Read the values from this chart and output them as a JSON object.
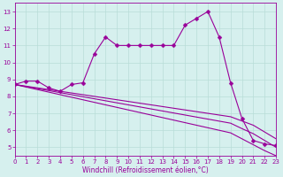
{
  "xlabel": "Windchill (Refroidissement éolien,°C)",
  "background_color": "#d6f0ee",
  "grid_color": "#b8ddd8",
  "line_color": "#990099",
  "x_hours": [
    0,
    1,
    2,
    3,
    4,
    5,
    6,
    7,
    8,
    9,
    10,
    11,
    12,
    13,
    14,
    15,
    16,
    17,
    18,
    19,
    20,
    21,
    22,
    23
  ],
  "temp_line": [
    8.7,
    8.9,
    8.9,
    8.5,
    8.3,
    8.7,
    8.8,
    10.5,
    11.5,
    11.0,
    11.0,
    11.0,
    11.0,
    11.0,
    11.0,
    12.2,
    12.6,
    13.0,
    11.5,
    8.8,
    6.7,
    5.4,
    5.2,
    5.1
  ],
  "reg1": [
    8.7,
    8.6,
    8.5,
    8.4,
    8.3,
    8.2,
    8.1,
    8.0,
    7.9,
    7.8,
    7.7,
    7.6,
    7.5,
    7.4,
    7.3,
    7.2,
    7.1,
    7.0,
    6.9,
    6.8,
    6.55,
    6.3,
    5.9,
    5.5
  ],
  "reg2": [
    8.7,
    8.58,
    8.46,
    8.34,
    8.22,
    8.1,
    7.98,
    7.86,
    7.74,
    7.62,
    7.5,
    7.38,
    7.26,
    7.14,
    7.02,
    6.9,
    6.78,
    6.66,
    6.54,
    6.42,
    6.1,
    5.8,
    5.4,
    5.0
  ],
  "reg3": [
    8.7,
    8.55,
    8.4,
    8.25,
    8.1,
    7.95,
    7.8,
    7.65,
    7.5,
    7.35,
    7.2,
    7.05,
    6.9,
    6.75,
    6.6,
    6.45,
    6.3,
    6.15,
    6.0,
    5.85,
    5.5,
    5.15,
    4.8,
    4.5
  ],
  "xlim": [
    0,
    23
  ],
  "ylim": [
    4.5,
    13.5
  ],
  "yticks": [
    5,
    6,
    7,
    8,
    9,
    10,
    11,
    12,
    13
  ],
  "xticks": [
    0,
    1,
    2,
    3,
    4,
    5,
    6,
    7,
    8,
    9,
    10,
    11,
    12,
    13,
    14,
    15,
    16,
    17,
    18,
    19,
    20,
    21,
    22,
    23
  ],
  "markersize": 2.5,
  "linewidth": 0.8,
  "tick_fontsize": 5.0,
  "xlabel_fontsize": 5.5
}
